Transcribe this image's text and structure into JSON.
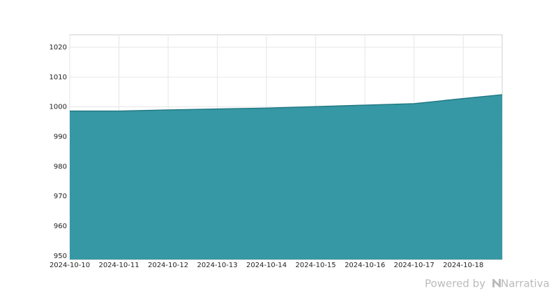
{
  "chart_data": {
    "type": "area",
    "x": [
      "2024-10-10",
      "2024-10-11",
      "2024-10-12",
      "2024-10-13",
      "2024-10-14",
      "2024-10-15",
      "2024-10-16",
      "2024-10-17",
      "2024-10-18",
      "2024-10-18T19:00"
    ],
    "series": [
      {
        "color": "#2b929f",
        "values": [
          998.6,
          998.6,
          999.0,
          999.3,
          999.6,
          1000.1,
          1000.6,
          1001.1,
          1002.8,
          1004.1
        ]
      }
    ],
    "xlim": [
      "2024-10-10",
      "2024-10-18T19:00"
    ],
    "xticks": [
      "2024-10-10",
      "2024-10-11",
      "2024-10-12",
      "2024-10-13",
      "2024-10-14",
      "2024-10-15",
      "2024-10-16",
      "2024-10-17",
      "2024-10-18"
    ],
    "ylim": [
      948.8,
      1024.2
    ],
    "yticks": [
      950,
      960,
      970,
      980,
      990,
      1000,
      1010,
      1020
    ],
    "grid": true
  },
  "footer": {
    "powered": "Powered by",
    "brand": "Narrativa"
  }
}
